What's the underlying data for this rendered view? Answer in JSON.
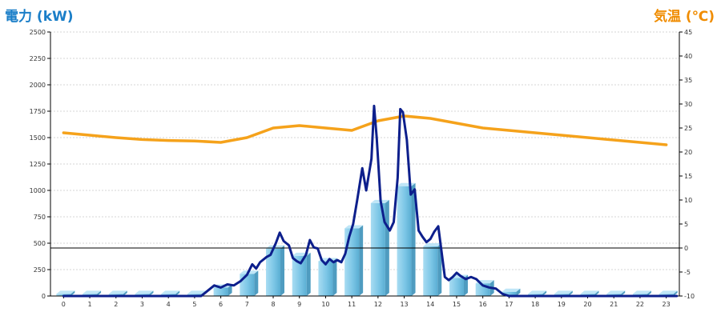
{
  "chart_data": {
    "type": "bar+line",
    "left_axis": {
      "label": "電力 (kW)",
      "ticks": [
        0,
        250,
        500,
        750,
        1000,
        1250,
        1500,
        1750,
        2000,
        2250,
        2500
      ],
      "range": [
        0,
        2500
      ]
    },
    "right_axis": {
      "label": "気温 (℃)",
      "ticks": [
        -10,
        -5,
        0,
        5,
        10,
        15,
        20,
        25,
        30,
        35,
        40,
        45
      ],
      "range": [
        -10,
        45
      ]
    },
    "x_ticks": [
      "0",
      "1",
      "2",
      "3",
      "4",
      "5",
      "6",
      "7",
      "8",
      "9",
      "10",
      "11",
      "12",
      "13",
      "14",
      "15",
      "16",
      "17",
      "18",
      "19",
      "20",
      "21",
      "22",
      "23"
    ],
    "bars": {
      "axis": "left",
      "values": [
        20,
        20,
        20,
        20,
        20,
        20,
        80,
        210,
        450,
        380,
        330,
        640,
        880,
        1040,
        470,
        170,
        120,
        40,
        20,
        20,
        20,
        20,
        20,
        20
      ]
    },
    "power_line": {
      "axis": "left",
      "points": [
        [
          0,
          0
        ],
        [
          1,
          0
        ],
        [
          2,
          0
        ],
        [
          3,
          0
        ],
        [
          4,
          0
        ],
        [
          5,
          0
        ],
        [
          5.25,
          0
        ],
        [
          5.5,
          50
        ],
        [
          5.75,
          100
        ],
        [
          6,
          80
        ],
        [
          6.25,
          110
        ],
        [
          6.5,
          100
        ],
        [
          6.75,
          140
        ],
        [
          7,
          200
        ],
        [
          7.2,
          300
        ],
        [
          7.35,
          260
        ],
        [
          7.5,
          320
        ],
        [
          7.75,
          370
        ],
        [
          7.9,
          390
        ],
        [
          8.1,
          500
        ],
        [
          8.25,
          600
        ],
        [
          8.4,
          520
        ],
        [
          8.6,
          480
        ],
        [
          8.75,
          360
        ],
        [
          8.9,
          330
        ],
        [
          9.05,
          310
        ],
        [
          9.25,
          390
        ],
        [
          9.4,
          530
        ],
        [
          9.55,
          460
        ],
        [
          9.7,
          450
        ],
        [
          9.85,
          340
        ],
        [
          10,
          300
        ],
        [
          10.15,
          350
        ],
        [
          10.3,
          320
        ],
        [
          10.45,
          340
        ],
        [
          10.6,
          320
        ],
        [
          10.75,
          400
        ],
        [
          10.9,
          560
        ],
        [
          11.05,
          680
        ],
        [
          11.2,
          900
        ],
        [
          11.4,
          1210
        ],
        [
          11.55,
          1000
        ],
        [
          11.75,
          1300
        ],
        [
          11.85,
          1800
        ],
        [
          11.95,
          1500
        ],
        [
          12.1,
          900
        ],
        [
          12.25,
          700
        ],
        [
          12.45,
          620
        ],
        [
          12.6,
          700
        ],
        [
          12.75,
          1120
        ],
        [
          12.85,
          1770
        ],
        [
          12.95,
          1740
        ],
        [
          13.1,
          1480
        ],
        [
          13.25,
          960
        ],
        [
          13.4,
          1010
        ],
        [
          13.55,
          620
        ],
        [
          13.7,
          560
        ],
        [
          13.85,
          510
        ],
        [
          14,
          540
        ],
        [
          14.15,
          610
        ],
        [
          14.3,
          660
        ],
        [
          14.55,
          180
        ],
        [
          14.7,
          150
        ],
        [
          14.85,
          180
        ],
        [
          15,
          220
        ],
        [
          15.15,
          190
        ],
        [
          15.35,
          160
        ],
        [
          15.55,
          180
        ],
        [
          15.75,
          160
        ],
        [
          16,
          100
        ],
        [
          16.25,
          80
        ],
        [
          16.5,
          70
        ],
        [
          16.75,
          20
        ],
        [
          17,
          0
        ],
        [
          18,
          0
        ],
        [
          19,
          0
        ],
        [
          20,
          0
        ],
        [
          21,
          0
        ],
        [
          22,
          0
        ],
        [
          23,
          0
        ],
        [
          23.4,
          0
        ]
      ]
    },
    "temperature_line": {
      "axis": "right",
      "points": [
        [
          0,
          24.0
        ],
        [
          1,
          23.5
        ],
        [
          2,
          23.0
        ],
        [
          3,
          22.6
        ],
        [
          4,
          22.4
        ],
        [
          5,
          22.3
        ],
        [
          6,
          22.0
        ],
        [
          7,
          23.0
        ],
        [
          8,
          25.0
        ],
        [
          9,
          25.5
        ],
        [
          10,
          25.0
        ],
        [
          11,
          24.5
        ],
        [
          12,
          26.5
        ],
        [
          13,
          27.5
        ],
        [
          14,
          27.0
        ],
        [
          15,
          26.0
        ],
        [
          16,
          25.0
        ],
        [
          17,
          24.5
        ],
        [
          18,
          24.0
        ],
        [
          19,
          23.5
        ],
        [
          20,
          23.0
        ],
        [
          21,
          22.5
        ],
        [
          22,
          22.0
        ],
        [
          23,
          21.5
        ]
      ]
    }
  }
}
